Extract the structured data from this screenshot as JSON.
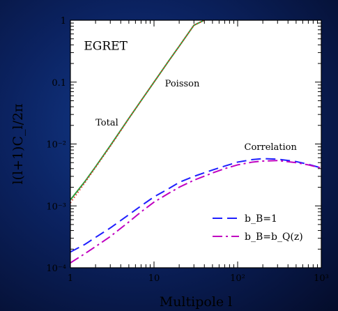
{
  "chart_data": {
    "type": "line",
    "title": "",
    "xlabel": "Multipole l",
    "ylabel": "l(l+1)C_l/2π",
    "xscale": "log",
    "yscale": "log",
    "xlim": [
      1,
      1000
    ],
    "ylim": [
      0.0001,
      1
    ],
    "x_tick_labels": [
      "1",
      "10",
      "10²",
      "10³"
    ],
    "y_tick_labels": [
      "10⁻⁴",
      "10⁻³",
      "10⁻²",
      "0.1",
      "1"
    ],
    "x_ticks": [
      1,
      10,
      100,
      1000
    ],
    "y_ticks": [
      0.0001,
      0.001,
      0.01,
      0.1,
      1
    ],
    "annotations": [
      {
        "text": "EGRET",
        "x": 1.45,
        "y": 0.33,
        "style": "big"
      },
      {
        "text": "Poisson",
        "x": 13.5,
        "y": 0.085,
        "style": "normal"
      },
      {
        "text": "Total",
        "x": 2.0,
        "y": 0.02,
        "style": "normal"
      },
      {
        "text": "Correlation",
        "x": 120,
        "y": 0.008,
        "style": "normal"
      }
    ],
    "legend": {
      "placement": "bottom-right",
      "entries": [
        {
          "label": "b_B=1",
          "color": "#1f1fff",
          "dash": "long"
        },
        {
          "label": "b_B=b_Q(z)",
          "color": "#c000c0",
          "dash": "dashdot"
        }
      ]
    },
    "series": [
      {
        "color": "#2e9e3e",
        "style": "solid",
        "x": [
          1,
          1.5,
          2,
          3,
          5,
          7,
          10,
          15,
          20,
          30,
          40
        ],
        "y": [
          0.00125,
          0.0025,
          0.0043,
          0.0094,
          0.026,
          0.05,
          0.1,
          0.22,
          0.38,
          0.83,
          1.0
        ]
      },
      {
        "color": "#e03020",
        "style": "dotted",
        "x": [
          1,
          1.5,
          2,
          3,
          5,
          7,
          10,
          15,
          20,
          30,
          40
        ],
        "y": [
          0.00112,
          0.0024,
          0.0042,
          0.0092,
          0.0258,
          0.05,
          0.1,
          0.22,
          0.38,
          0.83,
          1.0
        ]
      },
      {
        "name": "b_B=1",
        "color": "#1f1fff",
        "style": "long",
        "x": [
          1,
          1.5,
          2,
          3,
          5,
          7,
          10,
          15,
          20,
          30,
          50,
          70,
          100,
          150,
          200,
          300,
          500,
          700,
          1000
        ],
        "y": [
          0.00018,
          0.00024,
          0.00031,
          0.00044,
          0.00072,
          0.001,
          0.0014,
          0.0019,
          0.0024,
          0.003,
          0.0038,
          0.0044,
          0.0051,
          0.0056,
          0.0058,
          0.0057,
          0.0052,
          0.0047,
          0.0041
        ]
      },
      {
        "name": "b_B=b_Q(z)",
        "color": "#c000c0",
        "style": "dashdot",
        "x": [
          1,
          1.5,
          2,
          3,
          5,
          7,
          10,
          15,
          20,
          30,
          50,
          70,
          100,
          150,
          200,
          300,
          500,
          700,
          1000
        ],
        "y": [
          0.00012,
          0.00017,
          0.00022,
          0.00032,
          0.00055,
          0.0008,
          0.00115,
          0.0016,
          0.002,
          0.0026,
          0.0034,
          0.004,
          0.0046,
          0.0051,
          0.0053,
          0.0054,
          0.005,
          0.0046,
          0.0041
        ]
      }
    ]
  }
}
